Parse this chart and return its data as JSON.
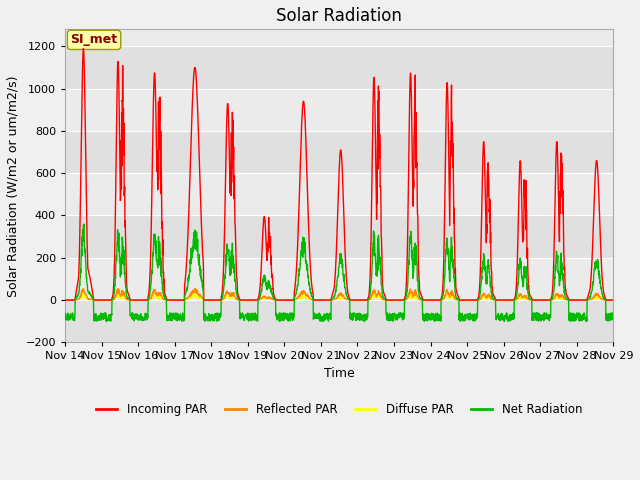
{
  "title": "Solar Radiation",
  "ylabel": "Solar Radiation (W/m2 or um/m2/s)",
  "xlabel": "Time",
  "ylim": [
    -200,
    1280
  ],
  "yticks": [
    -200,
    0,
    200,
    400,
    600,
    800,
    1000,
    1200
  ],
  "bg_color": "#f0f0f0",
  "plot_bg": "#e8e8e8",
  "grid_color": "#ffffff",
  "annotation_text": "SI_met",
  "annotation_color": "#8B0000",
  "annotation_bg": "#ffffaa",
  "annotation_edge": "#999900",
  "colors": {
    "incoming": "#ff0000",
    "reflected": "#ff8800",
    "diffuse": "#ffff00",
    "net": "#00bb00"
  },
  "legend_labels": [
    "Incoming PAR",
    "Reflected PAR",
    "Diffuse PAR",
    "Net Radiation"
  ],
  "x_tick_labels": [
    "Nov 14",
    "Nov 15",
    "Nov 16",
    "Nov 17",
    "Nov 18",
    "Nov 19",
    "Nov 20",
    "Nov 21",
    "Nov 22",
    "Nov 23",
    "Nov 24",
    "Nov 25",
    "Nov 26",
    "Nov 27",
    "Nov 28",
    "Nov 29"
  ],
  "line_width": 1.0,
  "title_fontsize": 12,
  "label_fontsize": 9,
  "tick_fontsize": 8
}
